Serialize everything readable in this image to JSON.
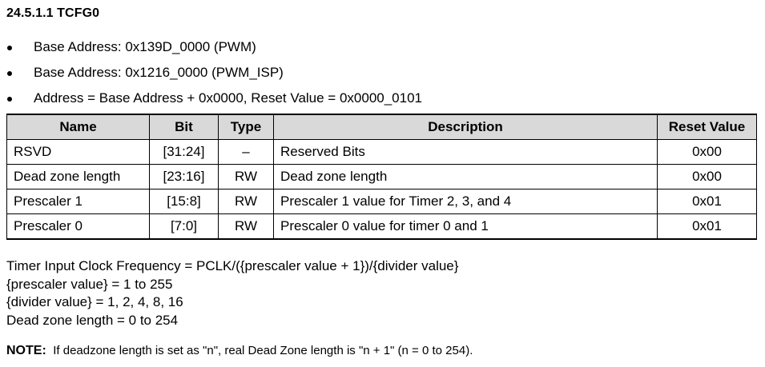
{
  "section_title": "24.5.1.1 TCFG0",
  "bullets": [
    "Base Address: 0x139D_0000 (PWM)",
    "Base Address: 0x1216_0000 (PWM_ISP)",
    "Address = Base Address + 0x0000, Reset Value = 0x0000_0101"
  ],
  "table": {
    "headers": {
      "name": "Name",
      "bit": "Bit",
      "type": "Type",
      "description": "Description",
      "reset": "Reset Value"
    },
    "rows": [
      {
        "name": "RSVD",
        "bit": "[31:24]",
        "type": "–",
        "description": "Reserved Bits",
        "reset": "0x00"
      },
      {
        "name": "Dead zone length",
        "bit": "[23:16]",
        "type": "RW",
        "description": "Dead zone length",
        "reset": "0x00"
      },
      {
        "name": "Prescaler 1",
        "bit": "[15:8]",
        "type": "RW",
        "description": "Prescaler 1 value for Timer 2, 3, and 4",
        "reset": "0x01"
      },
      {
        "name": "Prescaler 0",
        "bit": "[7:0]",
        "type": "RW",
        "description": "Prescaler 0 value for timer 0 and 1",
        "reset": "0x01"
      }
    ]
  },
  "formulas": [
    "Timer Input Clock Frequency = PCLK/({prescaler value + 1})/{divider value}",
    "{prescaler value} = 1 to 255",
    "{divider value} = 1, 2, 4, 8, 16",
    "Dead zone length = 0 to 254"
  ],
  "note": {
    "label": "NOTE:",
    "text": "If deadzone length is set as \"n\", real Dead Zone length is \"n + 1\" (n = 0 to 254)."
  }
}
